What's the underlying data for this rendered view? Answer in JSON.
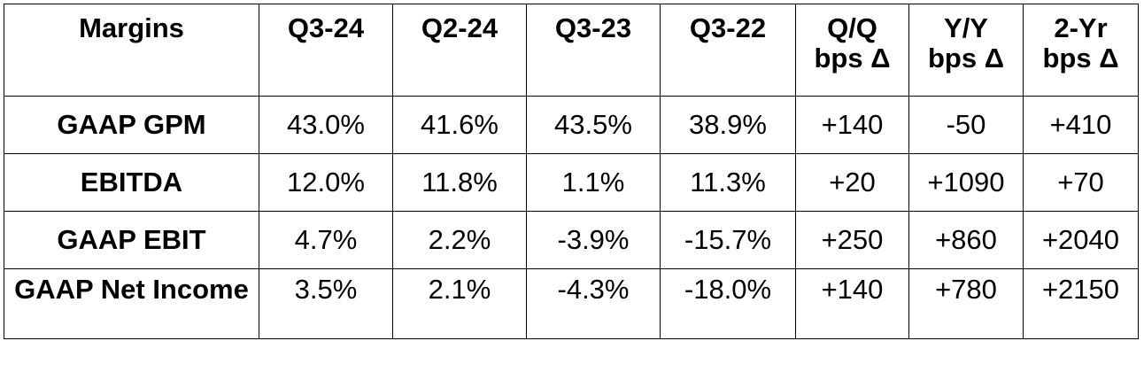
{
  "chart_data": {
    "type": "table",
    "columns": [
      "Margins",
      "Q3-24",
      "Q2-24",
      "Q3-23",
      "Q3-22",
      "Q/Q\nbps Δ",
      "Y/Y\nbps Δ",
      "2-Yr\nbps Δ"
    ],
    "rows": [
      {
        "label": "GAAP GPM",
        "values": [
          "43.0%",
          "41.6%",
          "43.5%",
          "38.9%",
          "+140",
          "-50",
          "+410"
        ]
      },
      {
        "label": "EBITDA",
        "values": [
          "12.0%",
          "11.8%",
          "1.1%",
          "11.3%",
          "+20",
          "+1090",
          "+70"
        ]
      },
      {
        "label": "GAAP EBIT",
        "values": [
          "4.7%",
          "2.2%",
          "-3.9%",
          "-15.7%",
          "+250",
          "+860",
          "+2040"
        ]
      },
      {
        "label": "GAAP Net Income",
        "values": [
          "3.5%",
          "2.1%",
          "-4.3%",
          "-18.0%",
          "+140",
          "+780",
          "+2150"
        ]
      }
    ]
  }
}
